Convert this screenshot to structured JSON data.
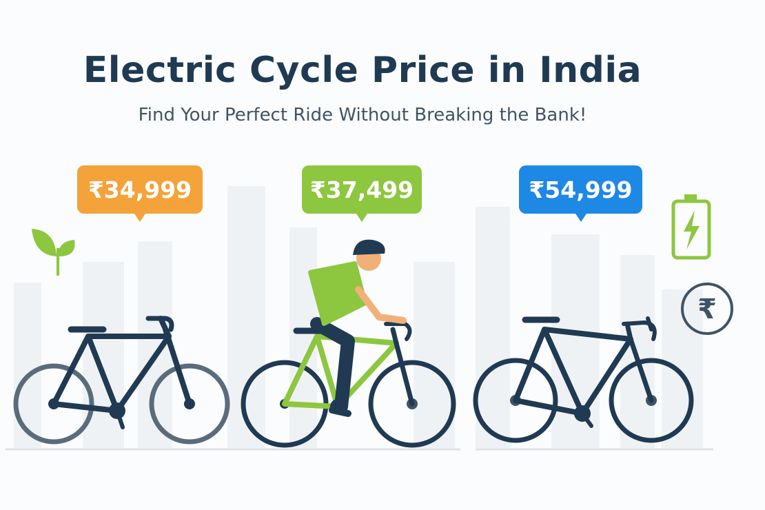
{
  "title": "Electric Cycle Price in India",
  "subtitle": "Find Your Perfect Ride Without Breaking the Bank!",
  "prices": [
    {
      "label": "₹34,999",
      "color": "#f4a23a"
    },
    {
      "label": "₹37,499",
      "color": "#8dc63f"
    },
    {
      "label": "₹54,999",
      "color": "#1e88e5"
    }
  ],
  "icons": [
    "leaf-icon",
    "battery-bolt-icon",
    "rupee-coin-icon"
  ],
  "rupee_symbol": "₹",
  "colors": {
    "navy": "#1f3a52",
    "green": "#8dc63f",
    "skyline": "#eef1f4"
  }
}
